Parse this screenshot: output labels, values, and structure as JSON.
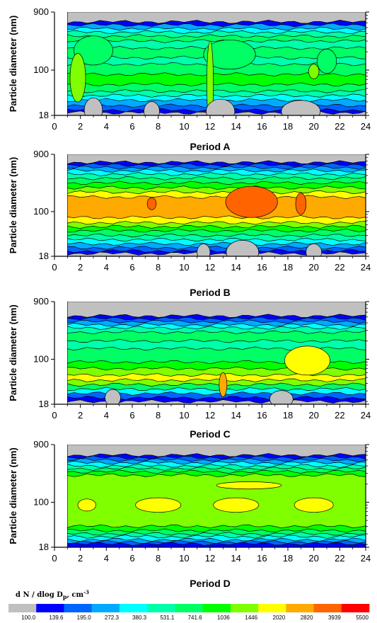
{
  "chart_data": [
    {
      "type": "heatmap",
      "title": "Period A",
      "ylabel": "Particle diameter (nm)",
      "xlabel": "",
      "x_ticks": [
        "0",
        "2",
        "4",
        "6",
        "8",
        "10",
        "12",
        "14",
        "16",
        "18",
        "20",
        "22",
        "24"
      ],
      "y_ticks": [
        "18",
        "100",
        "900"
      ],
      "xlim": [
        0,
        24
      ],
      "ylim": [
        18,
        900
      ],
      "y_scale": "log",
      "data_x_range": [
        1,
        24
      ],
      "bands": [
        {
          "d": 900,
          "level": 0
        },
        {
          "d": 620,
          "level": 1
        },
        {
          "d": 550,
          "level": 3
        },
        {
          "d": 480,
          "level": 4
        },
        {
          "d": 420,
          "level": 5
        },
        {
          "d": 360,
          "level": 6
        },
        {
          "d": 300,
          "level": 5
        },
        {
          "d": 230,
          "level": 6
        },
        {
          "d": 160,
          "level": 5
        },
        {
          "d": 125,
          "level": 6
        },
        {
          "d": 85,
          "level": 7
        },
        {
          "d": 58,
          "level": 6
        },
        {
          "d": 45,
          "level": 5
        },
        {
          "d": 38,
          "level": 4
        },
        {
          "d": 32,
          "level": 3
        },
        {
          "d": 26,
          "level": 2
        },
        {
          "d": 22,
          "level": 1
        },
        {
          "d": 20,
          "level": 0
        }
      ],
      "blobs": [
        {
          "x": 3,
          "d": 210,
          "w": 3.0,
          "h": 0.12,
          "level": 6
        },
        {
          "x": 13.5,
          "d": 180,
          "w": 4.0,
          "h": 0.12,
          "level": 6
        },
        {
          "x": 21,
          "d": 140,
          "w": 1.5,
          "h": 0.1,
          "level": 6
        },
        {
          "x": 1.8,
          "d": 75,
          "w": 1.2,
          "h": 0.2,
          "level": 8
        },
        {
          "x": 12,
          "d": 60,
          "w": 0.5,
          "h": 0.35,
          "level": 8
        },
        {
          "x": 20,
          "d": 95,
          "w": 0.8,
          "h": 0.06,
          "level": 8
        },
        {
          "x": 3,
          "d": 22,
          "w": 1.4,
          "h": 0.1,
          "level": 0
        },
        {
          "x": 7.5,
          "d": 21,
          "w": 1.2,
          "h": 0.08,
          "level": 0
        },
        {
          "x": 12.8,
          "d": 21,
          "w": 2.2,
          "h": 0.1,
          "level": 0
        },
        {
          "x": 19,
          "d": 21,
          "w": 3.0,
          "h": 0.09,
          "level": 0
        }
      ]
    },
    {
      "type": "heatmap",
      "title": "Period B",
      "ylabel": "Particle diameter (nm)",
      "xlabel": "",
      "x_ticks": [
        "0",
        "2",
        "4",
        "6",
        "8",
        "10",
        "12",
        "14",
        "16",
        "18",
        "20",
        "22",
        "24"
      ],
      "y_ticks": [
        "18",
        "100",
        "900"
      ],
      "xlim": [
        0,
        24
      ],
      "ylim": [
        18,
        900
      ],
      "y_scale": "log",
      "data_x_range": [
        1,
        24
      ],
      "bands": [
        {
          "d": 900,
          "level": 0
        },
        {
          "d": 660,
          "level": 1
        },
        {
          "d": 600,
          "level": 2
        },
        {
          "d": 540,
          "level": 3
        },
        {
          "d": 480,
          "level": 4
        },
        {
          "d": 420,
          "level": 5
        },
        {
          "d": 360,
          "level": 6
        },
        {
          "d": 300,
          "level": 7
        },
        {
          "d": 250,
          "level": 8
        },
        {
          "d": 210,
          "level": 9
        },
        {
          "d": 175,
          "level": 10
        },
        {
          "d": 80,
          "level": 9
        },
        {
          "d": 65,
          "level": 8
        },
        {
          "d": 56,
          "level": 7
        },
        {
          "d": 48,
          "level": 6
        },
        {
          "d": 40,
          "level": 5
        },
        {
          "d": 34,
          "level": 4
        },
        {
          "d": 29,
          "level": 3
        },
        {
          "d": 25,
          "level": 2
        },
        {
          "d": 22,
          "level": 1
        },
        {
          "d": 20,
          "level": 0
        }
      ],
      "blobs": [
        {
          "x": 15.2,
          "d": 145,
          "w": 4.0,
          "h": 0.13,
          "level": 11
        },
        {
          "x": 19,
          "d": 135,
          "w": 0.8,
          "h": 0.09,
          "level": 11
        },
        {
          "x": 7.5,
          "d": 135,
          "w": 0.7,
          "h": 0.05,
          "level": 11
        },
        {
          "x": 14.5,
          "d": 21,
          "w": 2.5,
          "h": 0.1,
          "level": 0
        },
        {
          "x": 11.5,
          "d": 21,
          "w": 1.0,
          "h": 0.07,
          "level": 0
        },
        {
          "x": 20,
          "d": 21,
          "w": 1.2,
          "h": 0.07,
          "level": 0
        }
      ]
    },
    {
      "type": "heatmap",
      "title": "Period C",
      "ylabel": "Particle diameter (nm)",
      "xlabel": "",
      "x_ticks": [
        "0",
        "2",
        "4",
        "6",
        "8",
        "10",
        "12",
        "14",
        "16",
        "18",
        "20",
        "22",
        "24"
      ],
      "y_ticks": [
        "18",
        "100",
        "900"
      ],
      "xlim": [
        0,
        24
      ],
      "ylim": [
        18,
        900
      ],
      "y_scale": "log",
      "data_x_range": [
        1,
        24
      ],
      "bands": [
        {
          "d": 900,
          "level": 0
        },
        {
          "d": 520,
          "level": 1
        },
        {
          "d": 470,
          "level": 2
        },
        {
          "d": 420,
          "level": 3
        },
        {
          "d": 370,
          "level": 4
        },
        {
          "d": 330,
          "level": 5
        },
        {
          "d": 280,
          "level": 6
        },
        {
          "d": 200,
          "level": 5
        },
        {
          "d": 150,
          "level": 6
        },
        {
          "d": 90,
          "level": 7
        },
        {
          "d": 70,
          "level": 8
        },
        {
          "d": 55,
          "level": 9
        },
        {
          "d": 45,
          "level": 8
        },
        {
          "d": 38,
          "level": 6
        },
        {
          "d": 32,
          "level": 4
        },
        {
          "d": 27,
          "level": 2
        },
        {
          "d": 23,
          "level": 1
        },
        {
          "d": 20,
          "level": 0
        }
      ],
      "blobs": [
        {
          "x": 19.5,
          "d": 95,
          "w": 3.5,
          "h": 0.12,
          "level": 9
        },
        {
          "x": 13,
          "d": 38,
          "w": 0.6,
          "h": 0.1,
          "level": 10
        },
        {
          "x": 4.5,
          "d": 23,
          "w": 1.2,
          "h": 0.07,
          "level": 0
        },
        {
          "x": 17.5,
          "d": 22,
          "w": 1.8,
          "h": 0.07,
          "level": 0
        }
      ]
    },
    {
      "type": "heatmap",
      "title": "Period D",
      "ylabel": "Particle diameter (nm)",
      "xlabel": "",
      "x_ticks": [
        "0",
        "2",
        "4",
        "6",
        "8",
        "10",
        "12",
        "14",
        "16",
        "18",
        "20",
        "22",
        "24"
      ],
      "y_ticks": [
        "18",
        "100",
        "900"
      ],
      "xlim": [
        0,
        24
      ],
      "ylim": [
        18,
        900
      ],
      "y_scale": "log",
      "data_x_range": [
        1,
        24
      ],
      "bands": [
        {
          "d": 900,
          "level": 0
        },
        {
          "d": 600,
          "level": 1
        },
        {
          "d": 550,
          "level": 2
        },
        {
          "d": 500,
          "level": 3
        },
        {
          "d": 450,
          "level": 4
        },
        {
          "d": 400,
          "level": 5
        },
        {
          "d": 360,
          "level": 6
        },
        {
          "d": 320,
          "level": 7
        },
        {
          "d": 280,
          "level": 8
        },
        {
          "d": 40,
          "level": 7
        },
        {
          "d": 34,
          "level": 6
        },
        {
          "d": 30,
          "level": 5
        },
        {
          "d": 27,
          "level": 4
        },
        {
          "d": 24,
          "level": 3
        },
        {
          "d": 22,
          "level": 2
        },
        {
          "d": 20.5,
          "level": 1
        }
      ],
      "blobs": [
        {
          "x": 15,
          "d": 190,
          "w": 5.0,
          "h": 0.03,
          "level": 9
        },
        {
          "x": 8,
          "d": 90,
          "w": 3.5,
          "h": 0.06,
          "level": 9
        },
        {
          "x": 14,
          "d": 90,
          "w": 3.5,
          "h": 0.06,
          "level": 9
        },
        {
          "x": 20,
          "d": 90,
          "w": 3.0,
          "h": 0.06,
          "level": 9
        },
        {
          "x": 2.5,
          "d": 90,
          "w": 1.4,
          "h": 0.05,
          "level": 9
        }
      ]
    }
  ],
  "colorbar": {
    "title": "d N / dlog D",
    "title_subscript": "p",
    "title_unit": ", cm",
    "title_superscript": "-3",
    "tick_labels": [
      "100.0",
      "139.6",
      "195.0",
      "272.3",
      "380.3",
      "531.1",
      "741.6",
      "1036",
      "1446",
      "2020",
      "2820",
      "3939",
      "5500"
    ],
    "colors": [
      "#c0c0c0",
      "#0000ff",
      "#0064ff",
      "#00aaff",
      "#00ffff",
      "#00ffaa",
      "#00ff64",
      "#00ff00",
      "#80ff00",
      "#ffff00",
      "#ffaa00",
      "#ff6400",
      "#ff0000"
    ]
  }
}
